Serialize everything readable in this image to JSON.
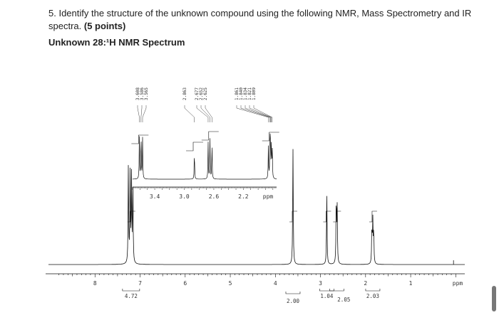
{
  "question": {
    "text": "5. Identify the structure of the unknown compound using the following NMR, Mass Spectrometry and IR spectra.",
    "points": "(5 points)"
  },
  "spectrum_title": "Unknown 28:¹H NMR Spectrum",
  "chart_data": [
    {
      "type": "line",
      "title": "",
      "xlabel": "ppm",
      "xlim": [
        9.0,
        -0.2
      ],
      "x_reversed": true,
      "xticks": [
        8,
        7,
        6,
        5,
        4,
        3,
        2,
        1
      ],
      "peaks": [
        {
          "shift": 7.26,
          "height": 0.78
        },
        {
          "shift": 7.22,
          "height": 0.74
        },
        {
          "shift": 7.19,
          "height": 0.68
        },
        {
          "shift": 7.16,
          "height": 0.6
        },
        {
          "shift": 3.61,
          "height": 0.92
        },
        {
          "shift": 2.86,
          "height": 0.56
        },
        {
          "shift": 2.65,
          "height": 0.52
        },
        {
          "shift": 2.63,
          "height": 0.44
        },
        {
          "shift": 1.86,
          "height": 0.28
        },
        {
          "shift": 1.84,
          "height": 0.34
        },
        {
          "shift": 1.82,
          "height": 0.26
        }
      ],
      "integrations": [
        {
          "center": 7.2,
          "value": "4.72"
        },
        {
          "center": 3.61,
          "value": "2.00"
        },
        {
          "center": 2.86,
          "value": "1.04"
        },
        {
          "center": 2.64,
          "value": "2.05"
        },
        {
          "center": 1.84,
          "value": "2.03"
        }
      ]
    },
    {
      "type": "line",
      "title": "",
      "xlabel": "ppm",
      "xlim": [
        3.7,
        1.75
      ],
      "x_reversed": true,
      "xticks": [
        3.4,
        3.0,
        2.6,
        2.2
      ],
      "peak_labels": [
        "3.608",
        "3.586",
        "3.565",
        "2.863",
        "2.677",
        "2.652",
        "2.625",
        "1.861",
        "1.840",
        "1.834",
        "1.821",
        "1.809"
      ],
      "peaks": [
        {
          "shift": 3.608,
          "height": 0.82
        },
        {
          "shift": 3.586,
          "height": 0.9
        },
        {
          "shift": 3.565,
          "height": 0.8
        },
        {
          "shift": 2.863,
          "height": 0.55
        },
        {
          "shift": 2.677,
          "height": 0.72
        },
        {
          "shift": 2.652,
          "height": 0.8
        },
        {
          "shift": 2.625,
          "height": 0.7
        },
        {
          "shift": 1.861,
          "height": 0.62
        },
        {
          "shift": 1.84,
          "height": 0.72
        },
        {
          "shift": 1.834,
          "height": 0.78
        },
        {
          "shift": 1.821,
          "height": 0.7
        },
        {
          "shift": 1.809,
          "height": 0.6
        }
      ]
    }
  ]
}
